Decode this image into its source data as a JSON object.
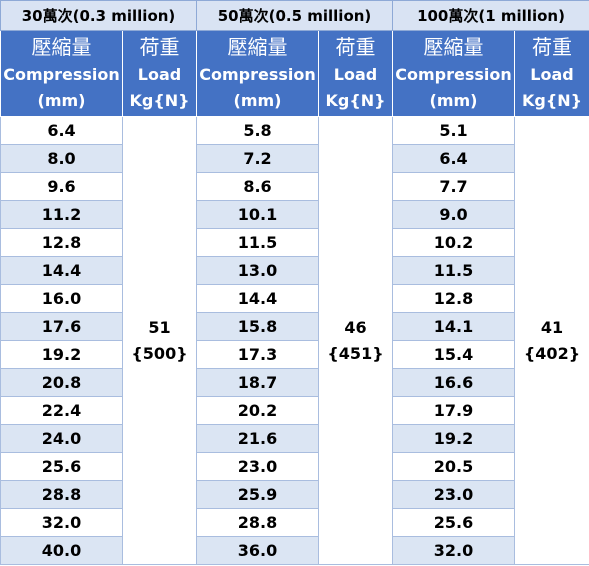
{
  "cycles": [
    "30萬次(0.3 million)",
    "50萬次(0.5 million)",
    "100萬次(1 million)"
  ],
  "headers": {
    "compression": [
      "壓縮量",
      "Compression",
      "(mm)"
    ],
    "load": [
      "荷重",
      "Load",
      "Kg{N}"
    ]
  },
  "groups": [
    {
      "compression": [
        "6.4",
        "8.0",
        "9.6",
        "11.2",
        "12.8",
        "14.4",
        "16.0",
        "17.6",
        "19.2",
        "20.8",
        "22.4",
        "24.0",
        "25.6",
        "28.8",
        "32.0",
        "40.0"
      ],
      "load": "51",
      "load_n": "{500}"
    },
    {
      "compression": [
        "5.8",
        "7.2",
        "8.6",
        "10.1",
        "11.5",
        "13.0",
        "14.4",
        "15.8",
        "17.3",
        "18.7",
        "20.2",
        "21.6",
        "23.0",
        "25.9",
        "28.8",
        "36.0"
      ],
      "load": "46",
      "load_n": "{451}"
    },
    {
      "compression": [
        "5.1",
        "6.4",
        "7.7",
        "9.0",
        "10.2",
        "11.5",
        "12.8",
        "14.1",
        "15.4",
        "16.6",
        "17.9",
        "19.2",
        "20.5",
        "23.0",
        "25.6",
        "32.0"
      ],
      "load": "41",
      "load_n": "{402}"
    }
  ]
}
